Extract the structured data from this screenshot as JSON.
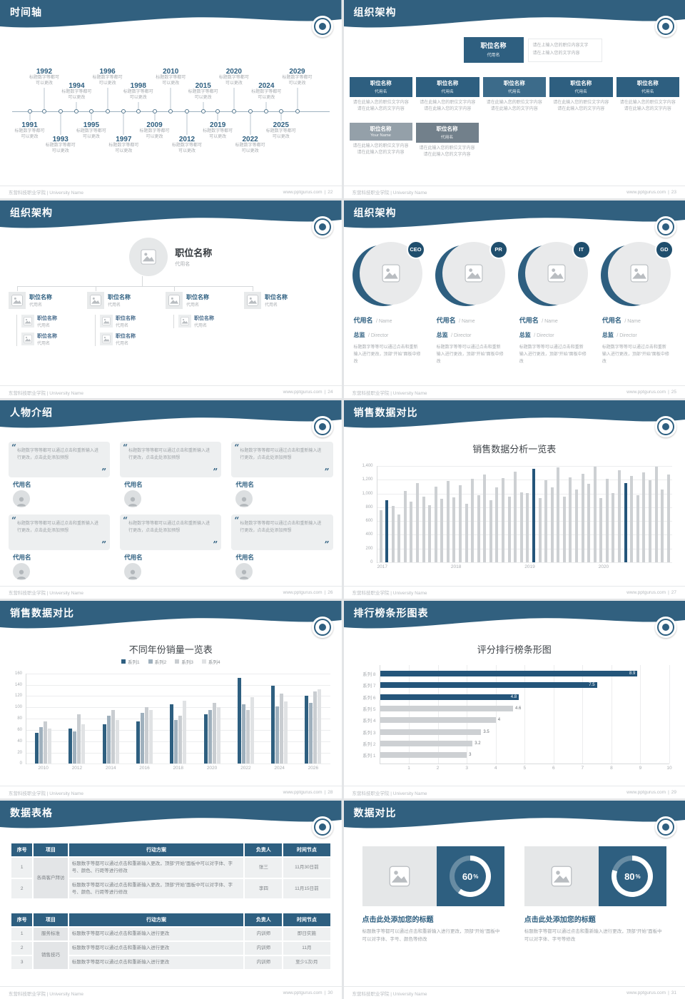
{
  "theme": {
    "header_blue": "#31607f",
    "accent": "#2e5f80",
    "dark_bar": "#24557a",
    "gray_bar": "#cdd0d3",
    "page_bg": "#e3e5e7"
  },
  "footer": {
    "left": "东营科技职业学院 | University Name",
    "site": "www.pptgurus.com",
    "sep": "|"
  },
  "slides": [
    {
      "id": "timeline",
      "title": "时间轴",
      "page": "22",
      "caption_lines": [
        "标题数字等都可",
        "可以更改"
      ],
      "top": [
        {
          "year": "1992",
          "x": 11,
          "lift": 1
        },
        {
          "year": "1994",
          "x": 21,
          "lift": 0
        },
        {
          "year": "1996",
          "x": 30.5,
          "lift": 1
        },
        {
          "year": "1998",
          "x": 40,
          "lift": 0
        },
        {
          "year": "2010",
          "x": 50,
          "lift": 1
        },
        {
          "year": "2015",
          "x": 60,
          "lift": 0
        },
        {
          "year": "2020",
          "x": 69.5,
          "lift": 1
        },
        {
          "year": "2024",
          "x": 79.5,
          "lift": 0
        },
        {
          "year": "2029",
          "x": 89,
          "lift": 1
        }
      ],
      "bottom": [
        {
          "year": "1991",
          "x": 6.5,
          "lift": 0
        },
        {
          "year": "1993",
          "x": 16,
          "lift": 1
        },
        {
          "year": "1995",
          "x": 25.5,
          "lift": 0
        },
        {
          "year": "1997",
          "x": 35.5,
          "lift": 1
        },
        {
          "year": "2009",
          "x": 45,
          "lift": 0
        },
        {
          "year": "2012",
          "x": 55,
          "lift": 1
        },
        {
          "year": "2019",
          "x": 64.5,
          "lift": 0
        },
        {
          "year": "2022",
          "x": 74.5,
          "lift": 1
        },
        {
          "year": "2025",
          "x": 84,
          "lift": 0
        }
      ]
    },
    {
      "id": "org-levels",
      "title": "组织架构",
      "page": "23",
      "head": {
        "name": "职位名称",
        "sub": "代用名"
      },
      "head_note": [
        "请在上输入您的职位内容文字",
        "请在上输入您的文字内容"
      ],
      "note": "请在此输入您的职位文字内容请在此输入您的文字内容",
      "row1": [
        {
          "name": "职位名称",
          "sub": "代用名",
          "color": "#2e5f80"
        },
        {
          "name": "职位名称",
          "sub": "代用名",
          "color": "#2e5f80"
        },
        {
          "name": "职位名称",
          "sub": "代用名",
          "color": "#3c6b8a"
        },
        {
          "name": "职位名称",
          "sub": "代用名",
          "color": "#2e5f80"
        },
        {
          "name": "职位名称",
          "sub": "代用名",
          "color": "#2e5f80"
        }
      ],
      "row2": [
        {
          "name": "职位名称",
          "sub": "Your Name",
          "color": "#94a0a9"
        },
        {
          "name": "职位名称",
          "sub": "代用名",
          "color": "#72808b"
        }
      ]
    },
    {
      "id": "org-tree",
      "title": "组织架构",
      "page": "24",
      "head": {
        "name": "职位名称",
        "sub": "代用名"
      },
      "nodes": [
        {
          "name": "职位名称",
          "sub": "代用名",
          "children": 2
        },
        {
          "name": "职位名称",
          "sub": "代用名",
          "children": 2
        },
        {
          "name": "职位名称",
          "sub": "代用名",
          "children": 1
        },
        {
          "name": "职位名称",
          "sub": "代用名",
          "children": 0
        }
      ],
      "child": {
        "name": "职位名称",
        "sub": "代用名"
      }
    },
    {
      "id": "org-circles",
      "title": "组织架构",
      "page": "25",
      "members": [
        {
          "badge": "CEO",
          "name": "代用名",
          "name_en": "/ Name",
          "role": "总监",
          "role_en": "/ Director",
          "note": "标题数字等等可以通过点击和重新输入进行更改，顶部“开始”面板中修改"
        },
        {
          "badge": "PR",
          "name": "代用名",
          "name_en": "/ Name",
          "role": "总监",
          "role_en": "/ Director",
          "note": "标题数字等等可以通过点击和重新输入进行更改，顶部“开始”面板中修改"
        },
        {
          "badge": "IT",
          "name": "代用名",
          "name_en": "/ Name",
          "role": "总监",
          "role_en": "/ Director",
          "note": "标题数字等等可以通过点击和重新输入进行更改，顶部“开始”面板中修改"
        },
        {
          "badge": "GD",
          "name": "代用名",
          "name_en": "/ Name",
          "role": "总监",
          "role_en": "/ Director",
          "note": "标题数字等等可以通过点击和重新输入进行更改，顶部“开始”面板中修改"
        }
      ]
    },
    {
      "id": "people",
      "title": "人物介绍",
      "page": "26",
      "quote_open": "“",
      "quote_close": "”",
      "cards": [
        {
          "text": "标题数字等等都可以通过点击和重新输入进行更改，点击此处添加预想",
          "name": "代用名"
        },
        {
          "text": "标题数字等等都可以通过点击和重新输入进行更改，点击此处添加预想",
          "name": "代用名"
        },
        {
          "text": "标题数字等等都可以通过点击和重新输入进行更改，点击此处添加预想",
          "name": "代用名"
        },
        {
          "text": "标题数字等等都可以通过点击和重新输入进行更改，点击此处添加预想",
          "name": "代用名"
        },
        {
          "text": "标题数字等等都可以通过点击和重新输入进行更改，点击此处添加预想",
          "name": "代用名"
        },
        {
          "text": "标题数字等等都可以通过点击和重新输入进行更改，点击此处添加预想",
          "name": "代用名"
        }
      ]
    },
    {
      "id": "chart-monthly",
      "title": "销售数据对比",
      "page": "27",
      "chart_data": {
        "type": "bar",
        "title": "销售数据分析一览表",
        "y_ticks": [
          "1,400",
          "1,200",
          "1,000",
          "800",
          "600",
          "400",
          "200",
          "0"
        ],
        "y_max": 1400,
        "x_labels": [
          "2017",
          "2018",
          "2019",
          "2020"
        ],
        "values": [
          760,
          900,
          820,
          700,
          1040,
          880,
          1150,
          960,
          830,
          1100,
          920,
          1180,
          940,
          1120,
          850,
          1210,
          980,
          1280,
          900,
          1090,
          1230,
          950,
          1320,
          1020,
          1010,
          1360,
          930,
          1190,
          1090,
          1380,
          960,
          1240,
          1060,
          1290,
          1140,
          1395,
          930,
          1210,
          1010,
          1340,
          1150,
          1260,
          980,
          1310,
          1190,
          1390,
          1060,
          1280
        ],
        "dark_indices": [
          1,
          25,
          40
        ]
      }
    },
    {
      "id": "chart-grouped",
      "title": "销售数据对比",
      "page": "28",
      "chart_data": {
        "type": "bar",
        "title": "不同年份销量一览表",
        "categories": [
          "2010",
          "2012",
          "2014",
          "2016",
          "2018",
          "2020",
          "2022",
          "2024",
          "2026"
        ],
        "series": [
          {
            "name": "系列1",
            "color": "#2e5f80",
            "values": [
              55,
              62,
              70,
              75,
              105,
              88,
              152,
              138,
              120
            ]
          },
          {
            "name": "系列2",
            "color": "#9fb0bd",
            "values": [
              65,
              58,
              85,
              90,
              78,
              95,
              105,
              102,
              108
            ]
          },
          {
            "name": "系列3",
            "color": "#c9cdd1",
            "values": [
              75,
              88,
              95,
              100,
              85,
              108,
              95,
              125,
              128
            ]
          },
          {
            "name": "系列4",
            "color": "#e0e2e4",
            "values": [
              62,
              70,
              78,
              95,
              112,
              100,
              118,
              110,
              132
            ]
          }
        ],
        "y_ticks": [
          "160",
          "140",
          "120",
          "100",
          "80",
          "60",
          "40",
          "20",
          "0"
        ],
        "y_max": 160
      }
    },
    {
      "id": "chart-ranking",
      "title": "排行榜条形图表",
      "page": "29",
      "chart_data": {
        "type": "bar",
        "orientation": "horizontal",
        "title": "评分排行榜条形图",
        "categories": [
          "系列 8",
          "系列 7",
          "系列 6",
          "系列 5",
          "系列 4",
          "系列 3",
          "系列 2",
          "系列 1"
        ],
        "values": [
          8.9,
          7.5,
          4.8,
          4.6,
          4,
          3.5,
          3.2,
          3
        ],
        "dark_count": 3,
        "x_ticks": [
          "1",
          "2",
          "3",
          "4",
          "5",
          "6",
          "7",
          "8",
          "9",
          "10"
        ],
        "x_max": 10
      }
    },
    {
      "id": "tables",
      "title": "数据表格",
      "page": "30",
      "table1": {
        "headers": [
          "序号",
          "项目",
          "行动方案",
          "负责人",
          "时间节点"
        ],
        "rows": [
          {
            "no": "1",
            "proj": "各商客户拜访",
            "plan": "标题数字等都可以通过点击和重新输入更改，顶部“开始”面板中可以对字体、字号、颜色、行距等进行修改",
            "owner": "张三",
            "time": "11月30日前"
          },
          {
            "no": "2",
            "proj": "",
            "plan": "标题数字等都可以通过点击和重新输入更改，顶部“开始”面板中可以对字体、字号、颜色、行距等进行修改",
            "owner": "李四",
            "time": "11月15日前"
          }
        ]
      },
      "table2": {
        "headers": [
          "序号",
          "项目",
          "行动方案",
          "负责人",
          "时间节点"
        ],
        "rows": [
          {
            "no": "1",
            "proj": "服务标准",
            "plan": "标题数字等都可以通过点击和重新输入进行更改",
            "owner": "内训师",
            "time": "即日实施"
          },
          {
            "no": "2",
            "proj": "销售技巧",
            "plan": "标题数字等都可以通过点击和重新输入进行更改",
            "owner": "内训师",
            "time": "11月"
          },
          {
            "no": "3",
            "proj": "",
            "plan": "标题数字等都可以通过点击和重新输入进行更改",
            "owner": "内训师",
            "time": "至少1次/月"
          }
        ]
      }
    },
    {
      "id": "compare",
      "title": "数据对比",
      "page": "31",
      "panels": [
        {
          "percent": 60,
          "num": "60",
          "pct": "%",
          "title": "点击此处添加您的标题",
          "note": "标题数字等都可以通过点击和重新输入进行更改，顶部“开始”面板中可以对字体、字号、颜色等修改"
        },
        {
          "percent": 80,
          "num": "80",
          "pct": "%",
          "title": "点击此处添加您的标题",
          "note": "标题数字等都可以通过点击和重新输入进行更改，顶部“开始”面板中可以对字体、字号等修改"
        }
      ]
    }
  ]
}
